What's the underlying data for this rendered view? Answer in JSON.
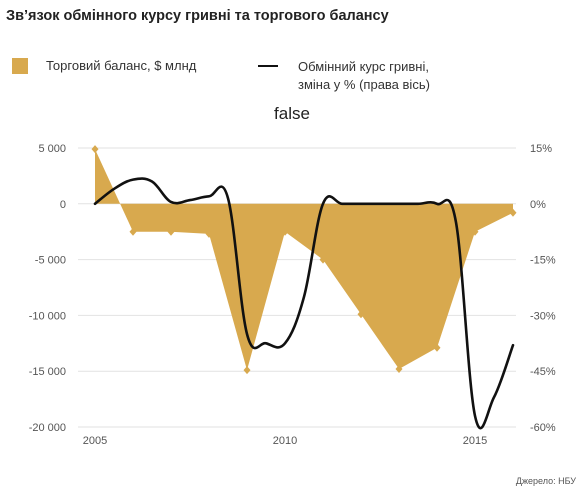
{
  "header": {
    "title": "Зв’язок обмінного курсу гривні та торгового балансу"
  },
  "legend": {
    "series1_label": "Торговий баланс, $ млнд",
    "series2_line1": "Обмінний курс гривні,",
    "series2_line2": "зміна у % (права вісь)"
  },
  "footer": {
    "source": "Джерело: НБУ"
  },
  "colors": {
    "area": "#d8a94e",
    "line": "#111111",
    "grid": "#e2e2e2"
  },
  "chart_data": {
    "type": "area",
    "title": "false",
    "x_ticks": [
      "2005",
      "2010",
      "2015"
    ],
    "y_left_ticks": [
      "5 000",
      "0",
      "-5 000",
      "-10 000",
      "-15 000",
      "-20 000"
    ],
    "y_right_ticks": [
      "15%",
      "0%",
      "-15%",
      "-30%",
      "-45%",
      "-60%"
    ],
    "xlim": [
      2005,
      2016
    ],
    "ylim_left": [
      -20000,
      5000
    ],
    "ylim_right": [
      -60,
      15
    ],
    "grid": true,
    "series": [
      {
        "name": "Торговий баланс, $ млнд",
        "axis": "left",
        "x": [
          2005,
          2006,
          2007,
          2008,
          2009,
          2010,
          2011,
          2012,
          2013,
          2014,
          2015,
          2016
        ],
        "values": [
          4900,
          -2500,
          -2500,
          -2700,
          -14900,
          -2500,
          -5000,
          -9900,
          -14800,
          -12900,
          -2500,
          -800
        ]
      },
      {
        "name": "Обмінний курс гривні, зміна у % (права вісь)",
        "axis": "right",
        "x": [
          2005.0,
          2005.5,
          2006.0,
          2006.5,
          2007.0,
          2007.5,
          2008.0,
          2008.5,
          2009.0,
          2009.5,
          2010.0,
          2010.5,
          2011.0,
          2011.5,
          2012.0,
          2012.5,
          2013.0,
          2013.5,
          2014.0,
          2014.5,
          2015.0,
          2015.5,
          2016.0
        ],
        "values": [
          0,
          4,
          6.5,
          6,
          0.5,
          1,
          2,
          1.5,
          -35,
          -37.5,
          -37.5,
          -25,
          0,
          0,
          0,
          0,
          0,
          0,
          0,
          -5,
          -57,
          -52,
          -38
        ]
      }
    ]
  }
}
